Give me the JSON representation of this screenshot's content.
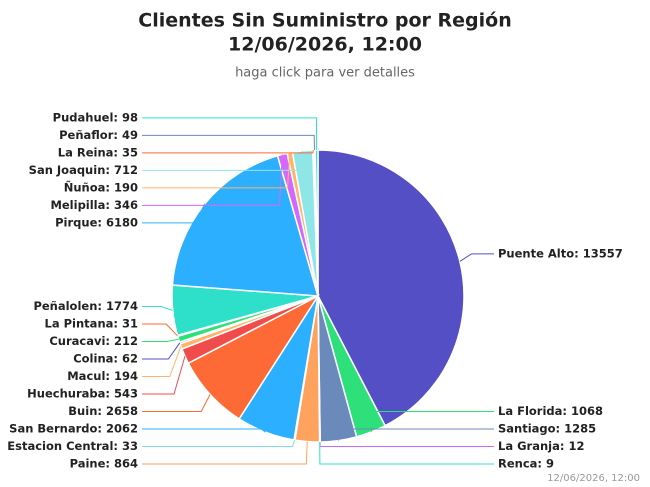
{
  "chart_data": {
    "type": "pie",
    "title": [
      "Clientes Sin Suministro por Región",
      "12/06/2026, 12:00"
    ],
    "subtitle": "haga click para ver detalles",
    "credits": "12/06/2026, 12:00",
    "values": [
      13557,
      1068,
      1285,
      12,
      9,
      864,
      33,
      2062,
      2658,
      543,
      194,
      62,
      212,
      31,
      1774,
      6180,
      346,
      190,
      712,
      35,
      49,
      98
    ],
    "value_labels": [
      "Puente Alto: 13557",
      "La Florida: 1068",
      "Santiago: 1285",
      "La Granja: 12",
      "Renca: 9",
      "Paine: 864",
      "Estacion Central: 33",
      "San Bernardo: 2062",
      "Buin: 2658",
      "Huechuraba: 543",
      "Macul: 194",
      "Colina: 62",
      "Curacavi: 212",
      "La Pintana: 31",
      "Peñalolen: 1774",
      "Pirque: 6180",
      "Melipilla: 346",
      "Ñuñoa: 190",
      "San Joaquin: 712",
      "La Reina: 35",
      "Peñaflor: 49",
      "Pudahuel: 98"
    ],
    "colors": [
      "#544fc5",
      "#2ee07a",
      "#6b8abc",
      "#d568fb",
      "#2ee0ca",
      "#fea35e",
      "#7ee0e6",
      "#2caffe",
      "#fe6a35",
      "#f04c4c",
      "#feb56a",
      "#544fc5",
      "#2ee07a",
      "#fe6a35",
      "#2ee0ca",
      "#2caffe",
      "#d568fb",
      "#feb56a",
      "#8fe6e6",
      "#fe6a35",
      "#6b8abc",
      "#2ee0ca"
    ]
  }
}
